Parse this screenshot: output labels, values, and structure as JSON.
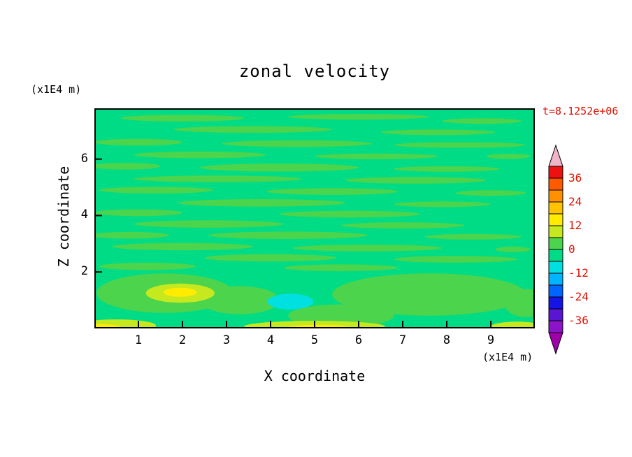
{
  "title": "zonal velocity",
  "timestamp": "t=8.1252e+06",
  "timestamp_color": "#dd1100",
  "axes": {
    "x": {
      "label": "X coordinate",
      "units": "(x1E4 m)",
      "min": 0,
      "max": 10,
      "ticks": [
        1,
        2,
        3,
        4,
        5,
        6,
        7,
        8,
        9
      ]
    },
    "z": {
      "label": "Z coordinate",
      "units": "(x1E4 m)",
      "min": 0,
      "max": 7.8,
      "ticks": [
        2,
        4,
        6
      ]
    }
  },
  "colorbar": {
    "labels": [
      "36",
      "24",
      "12",
      "0",
      "-12",
      "-24",
      "-36"
    ],
    "level_min": -42,
    "level_max": 42,
    "level_step": 6,
    "label_color": "#dd1100",
    "arrow_top_color": "#f0b4c8",
    "arrow_bottom_color": "#a000aa",
    "segments_top_to_bottom": [
      {
        "band": "36..42",
        "color": "#ee1111"
      },
      {
        "band": "30..36",
        "color": "#ff5a00"
      },
      {
        "band": "24..30",
        "color": "#ff9000"
      },
      {
        "band": "18..24",
        "color": "#ffc300"
      },
      {
        "band": "12..18",
        "color": "#ffec00"
      },
      {
        "band": "6..12",
        "color": "#c6e81e"
      },
      {
        "band": "0..6",
        "color": "#4cd44c"
      },
      {
        "band": "-6..0",
        "color": "#00dc86"
      },
      {
        "band": "-12..-6",
        "color": "#00e0e0"
      },
      {
        "band": "-18..-12",
        "color": "#00b4ff"
      },
      {
        "band": "-24..-18",
        "color": "#0064ff"
      },
      {
        "band": "-30..-24",
        "color": "#1414e6"
      },
      {
        "band": "-36..-30",
        "color": "#5a14d2"
      },
      {
        "band": "-42..-36",
        "color": "#8c14c8"
      }
    ]
  },
  "chart_data": {
    "type": "heatmap",
    "title": "zonal velocity",
    "xlabel": "X coordinate (x1E4 m)",
    "ylabel": "Z coordinate (x1E4 m)",
    "time_annotation": "t=8.1252e+06",
    "x_range": [
      0,
      10
    ],
    "z_range": [
      0,
      7.8
    ],
    "contour_levels": [
      -42,
      -36,
      -30,
      -24,
      -18,
      -12,
      -6,
      0,
      6,
      12,
      18,
      24,
      30,
      36,
      42
    ],
    "background_band": "-6..0",
    "palette": {
      "bg": "#00dc86",
      "p6": "#4cd44c",
      "p12": "#c6e81e",
      "p18": "#ffec00",
      "m12": "#00e0e0"
    },
    "band_meaning": {
      "bg": "-6..0",
      "p6": "0..6",
      "p12": "6..12",
      "p18": "12..18",
      "m12": "-12..-6"
    },
    "features": [
      {
        "x": 2.0,
        "z": 7.45,
        "rx": 1.4,
        "rz": 0.12,
        "level": "p6"
      },
      {
        "x": 6.0,
        "z": 7.5,
        "rx": 1.6,
        "rz": 0.1,
        "level": "p6"
      },
      {
        "x": 8.8,
        "z": 7.35,
        "rx": 0.9,
        "rz": 0.1,
        "level": "p6"
      },
      {
        "x": 3.6,
        "z": 7.05,
        "rx": 1.8,
        "rz": 0.12,
        "level": "p6"
      },
      {
        "x": 7.8,
        "z": 6.95,
        "rx": 1.3,
        "rz": 0.1,
        "level": "p6"
      },
      {
        "x": 1.0,
        "z": 6.6,
        "rx": 1.0,
        "rz": 0.12,
        "level": "p6"
      },
      {
        "x": 4.6,
        "z": 6.55,
        "rx": 1.7,
        "rz": 0.12,
        "level": "p6"
      },
      {
        "x": 8.3,
        "z": 6.5,
        "rx": 1.5,
        "rz": 0.1,
        "level": "p6"
      },
      {
        "x": 2.4,
        "z": 6.15,
        "rx": 1.5,
        "rz": 0.12,
        "level": "p6"
      },
      {
        "x": 6.4,
        "z": 6.1,
        "rx": 1.4,
        "rz": 0.1,
        "level": "p6"
      },
      {
        "x": 9.4,
        "z": 6.1,
        "rx": 0.5,
        "rz": 0.09,
        "level": "p6"
      },
      {
        "x": 0.7,
        "z": 5.75,
        "rx": 0.8,
        "rz": 0.12,
        "level": "p6"
      },
      {
        "x": 4.2,
        "z": 5.7,
        "rx": 1.8,
        "rz": 0.14,
        "level": "p6"
      },
      {
        "x": 8.0,
        "z": 5.65,
        "rx": 1.2,
        "rz": 0.1,
        "level": "p6"
      },
      {
        "x": 2.8,
        "z": 5.3,
        "rx": 1.9,
        "rz": 0.12,
        "level": "p6"
      },
      {
        "x": 7.3,
        "z": 5.25,
        "rx": 1.6,
        "rz": 0.12,
        "level": "p6"
      },
      {
        "x": 1.4,
        "z": 4.9,
        "rx": 1.3,
        "rz": 0.12,
        "level": "p6"
      },
      {
        "x": 5.4,
        "z": 4.85,
        "rx": 1.5,
        "rz": 0.12,
        "level": "p6"
      },
      {
        "x": 9.0,
        "z": 4.8,
        "rx": 0.8,
        "rz": 0.1,
        "level": "p6"
      },
      {
        "x": 3.8,
        "z": 4.45,
        "rx": 1.9,
        "rz": 0.13,
        "level": "p6"
      },
      {
        "x": 7.9,
        "z": 4.4,
        "rx": 1.1,
        "rz": 0.1,
        "level": "p6"
      },
      {
        "x": 1.0,
        "z": 4.1,
        "rx": 1.0,
        "rz": 0.12,
        "level": "p6"
      },
      {
        "x": 5.8,
        "z": 4.05,
        "rx": 1.6,
        "rz": 0.12,
        "level": "p6"
      },
      {
        "x": 2.6,
        "z": 3.7,
        "rx": 1.7,
        "rz": 0.13,
        "level": "p6"
      },
      {
        "x": 7.0,
        "z": 3.65,
        "rx": 1.4,
        "rz": 0.11,
        "level": "p6"
      },
      {
        "x": 0.8,
        "z": 3.3,
        "rx": 0.9,
        "rz": 0.12,
        "level": "p6"
      },
      {
        "x": 4.4,
        "z": 3.3,
        "rx": 1.8,
        "rz": 0.13,
        "level": "p6"
      },
      {
        "x": 8.6,
        "z": 3.25,
        "rx": 1.1,
        "rz": 0.1,
        "level": "p6"
      },
      {
        "x": 2.0,
        "z": 2.9,
        "rx": 1.6,
        "rz": 0.13,
        "level": "p6"
      },
      {
        "x": 6.2,
        "z": 2.85,
        "rx": 1.7,
        "rz": 0.12,
        "level": "p6"
      },
      {
        "x": 9.5,
        "z": 2.8,
        "rx": 0.4,
        "rz": 0.1,
        "level": "p6"
      },
      {
        "x": 4.0,
        "z": 2.5,
        "rx": 1.5,
        "rz": 0.13,
        "level": "p6"
      },
      {
        "x": 8.2,
        "z": 2.45,
        "rx": 1.4,
        "rz": 0.12,
        "level": "p6"
      },
      {
        "x": 1.2,
        "z": 2.2,
        "rx": 1.1,
        "rz": 0.13,
        "level": "p6"
      },
      {
        "x": 5.6,
        "z": 2.15,
        "rx": 1.3,
        "rz": 0.12,
        "level": "p6"
      },
      {
        "x": 1.6,
        "z": 1.25,
        "rx": 1.55,
        "rz": 0.7,
        "level": "p6"
      },
      {
        "x": 3.3,
        "z": 1.0,
        "rx": 0.9,
        "rz": 0.5,
        "level": "p6"
      },
      {
        "x": 7.6,
        "z": 1.2,
        "rx": 2.2,
        "rz": 0.75,
        "level": "p6"
      },
      {
        "x": 5.6,
        "z": 0.45,
        "rx": 1.2,
        "rz": 0.4,
        "level": "p6"
      },
      {
        "x": 9.8,
        "z": 0.9,
        "rx": 0.5,
        "rz": 0.5,
        "level": "p6"
      },
      {
        "x": 1.95,
        "z": 1.25,
        "rx": 0.78,
        "rz": 0.34,
        "level": "p12"
      },
      {
        "x": 0.5,
        "z": 0.1,
        "rx": 0.9,
        "rz": 0.22,
        "level": "p12"
      },
      {
        "x": 5.0,
        "z": 0.07,
        "rx": 1.6,
        "rz": 0.2,
        "level": "p12"
      },
      {
        "x": 9.6,
        "z": 0.06,
        "rx": 0.6,
        "rz": 0.18,
        "level": "p12"
      },
      {
        "x": 1.95,
        "z": 1.28,
        "rx": 0.38,
        "rz": 0.16,
        "level": "p18"
      },
      {
        "x": 0.15,
        "z": 0.03,
        "rx": 0.45,
        "rz": 0.12,
        "level": "p18"
      },
      {
        "x": 5.1,
        "z": 0.03,
        "rx": 0.7,
        "rz": 0.1,
        "level": "p18"
      },
      {
        "x": 4.45,
        "z": 0.95,
        "rx": 0.52,
        "rz": 0.28,
        "level": "m12"
      }
    ]
  }
}
